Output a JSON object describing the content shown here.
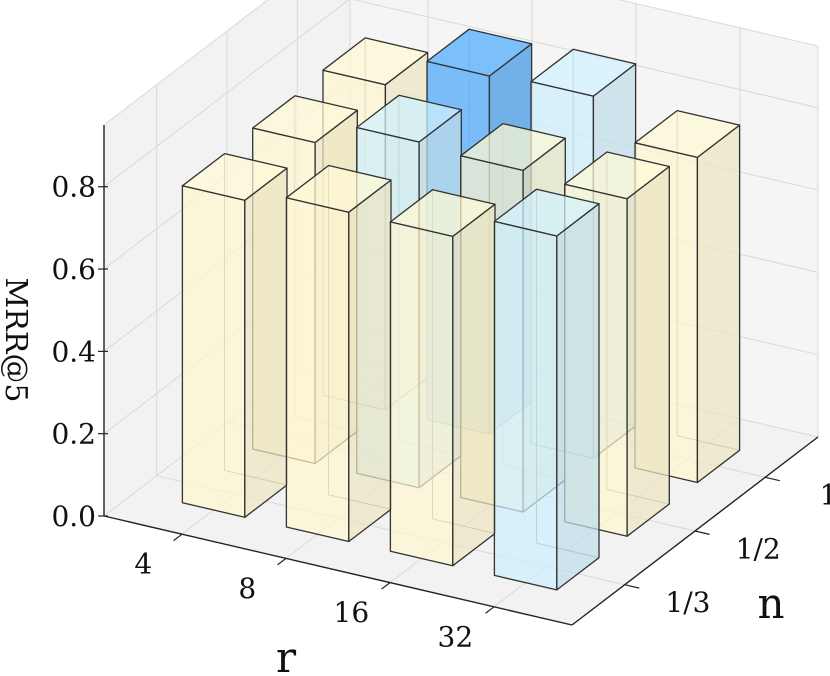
{
  "chart_data": {
    "type": "bar3d",
    "xlabel": "r",
    "ylabel": "n",
    "zlabel": "MRR@5",
    "x_categories": [
      "4",
      "8",
      "16",
      "32"
    ],
    "y_categories": [
      "1/3",
      "1/2",
      "1"
    ],
    "z_ticks": [
      "0.0",
      "0.2",
      "0.4",
      "0.6",
      "0.8"
    ],
    "zlim": [
      0,
      0.95
    ],
    "bars": [
      {
        "r": "4",
        "n": "1/3",
        "value": 0.77,
        "color": "#fdf5d0"
      },
      {
        "r": "8",
        "n": "1/3",
        "value": 0.8,
        "color": "#fdf5d0"
      },
      {
        "r": "16",
        "n": "1/3",
        "value": 0.8,
        "color": "#fdf5d0"
      },
      {
        "r": "32",
        "n": "1/3",
        "value": 0.86,
        "color": "#cdeefb"
      },
      {
        "r": "4",
        "n": "1/2",
        "value": 0.78,
        "color": "#fdf5d0"
      },
      {
        "r": "8",
        "n": "1/2",
        "value": 0.84,
        "color": "#cdeefb"
      },
      {
        "r": "16",
        "n": "1/2",
        "value": 0.83,
        "color": "#fdf5d0"
      },
      {
        "r": "32",
        "n": "1/2",
        "value": 0.82,
        "color": "#fdf5d0"
      },
      {
        "r": "4",
        "n": "1",
        "value": 0.79,
        "color": "#fdf5d0"
      },
      {
        "r": "8",
        "n": "1",
        "value": 0.87,
        "color": "#6cb6f7"
      },
      {
        "r": "16",
        "n": "1",
        "value": 0.88,
        "color": "#cdeefb"
      },
      {
        "r": "32",
        "n": "1",
        "value": 0.79,
        "color": "#fdf5d0"
      }
    ]
  }
}
